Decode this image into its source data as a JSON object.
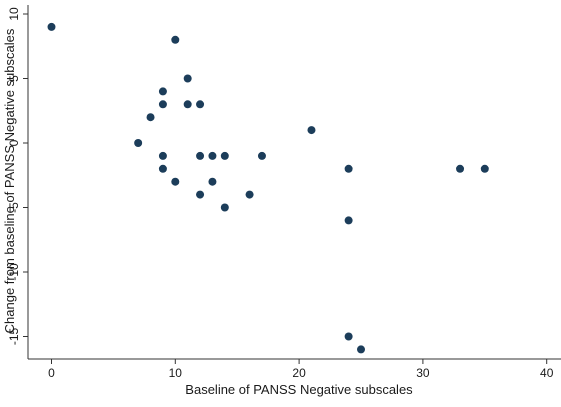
{
  "chart_data": {
    "type": "scatter",
    "title": "",
    "xlabel": "Baseline of PANSS Negative subscales",
    "ylabel": "Change from baseline of PANSS Negative subscales",
    "xlim": [
      0,
      40
    ],
    "ylim": [
      -16,
      10
    ],
    "xticks": [
      0,
      10,
      20,
      30,
      40
    ],
    "yticks": [
      10,
      5,
      0,
      -5,
      -10,
      -15
    ],
    "grid": false,
    "legend": "none",
    "marker_color": "#1c3d5a",
    "points": [
      {
        "x": 0,
        "y": 9
      },
      {
        "x": 10,
        "y": 8
      },
      {
        "x": 11,
        "y": 5
      },
      {
        "x": 9,
        "y": 4
      },
      {
        "x": 9,
        "y": 3
      },
      {
        "x": 11,
        "y": 3
      },
      {
        "x": 12,
        "y": 3
      },
      {
        "x": 8,
        "y": 2
      },
      {
        "x": 21,
        "y": 1
      },
      {
        "x": 7,
        "y": 0
      },
      {
        "x": 9,
        "y": -1
      },
      {
        "x": 12,
        "y": -1
      },
      {
        "x": 13,
        "y": -1
      },
      {
        "x": 14,
        "y": -1
      },
      {
        "x": 17,
        "y": -1
      },
      {
        "x": 9,
        "y": -2
      },
      {
        "x": 24,
        "y": -2
      },
      {
        "x": 33,
        "y": -2
      },
      {
        "x": 35,
        "y": -2
      },
      {
        "x": 10,
        "y": -3
      },
      {
        "x": 13,
        "y": -3
      },
      {
        "x": 12,
        "y": -4
      },
      {
        "x": 16,
        "y": -4
      },
      {
        "x": 14,
        "y": -5
      },
      {
        "x": 24,
        "y": -6
      },
      {
        "x": 24,
        "y": -15
      },
      {
        "x": 25,
        "y": -16
      }
    ]
  }
}
